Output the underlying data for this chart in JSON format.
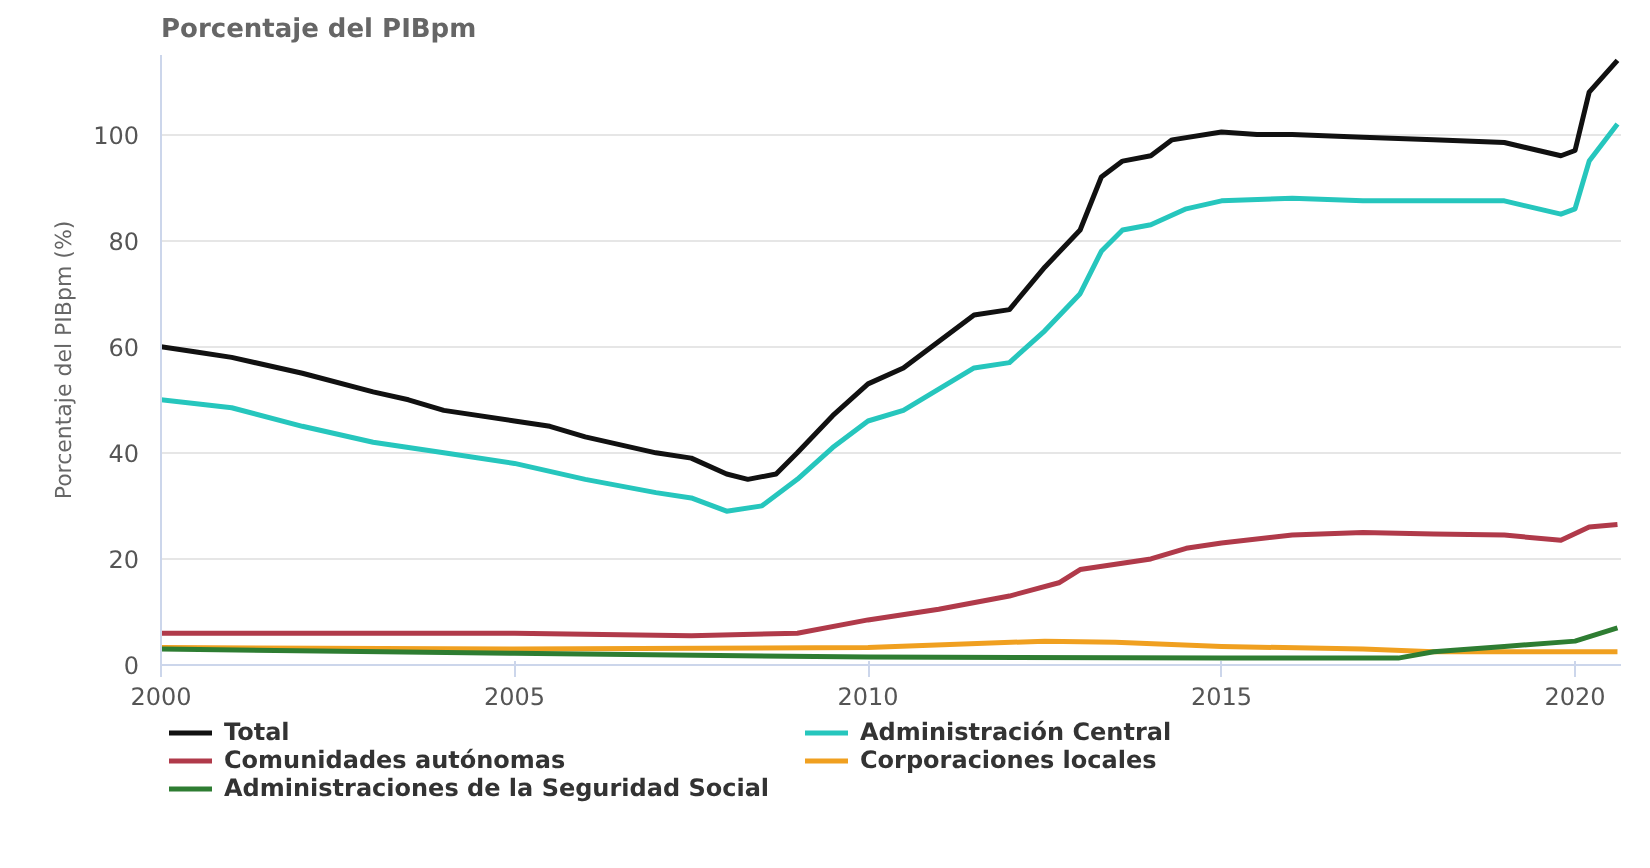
{
  "chart_data": {
    "type": "line",
    "title": "Porcentaje del PIBpm",
    "ylabel": "Porcentaje del PIBpm (%)",
    "xlim": [
      2000,
      2020.65
    ],
    "xticks": [
      2000,
      2005,
      2010,
      2015,
      2020
    ],
    "ylim": [
      0,
      115
    ],
    "yticks": [
      0,
      20,
      40,
      60,
      80,
      100
    ],
    "grid": "y",
    "legend": "bottom",
    "marker": "none",
    "line_style": "solid",
    "series": [
      {
        "name": "Total",
        "color": "#111111",
        "x": [
          2000,
          2000.5,
          2001,
          2002,
          2003,
          2003.5,
          2004,
          2005,
          2005.5,
          2006,
          2007,
          2007.5,
          2008,
          2008.3,
          2008.7,
          2009,
          2009.5,
          2010,
          2010.5,
          2011,
          2011.5,
          2012,
          2012.5,
          2013,
          2013.3,
          2013.6,
          2014,
          2014.3,
          2015,
          2015.5,
          2016,
          2017,
          2018,
          2019,
          2019.8,
          2020,
          2020.2,
          2020.6
        ],
        "values": [
          60,
          59,
          58,
          55,
          51.5,
          50,
          48,
          46,
          45,
          43,
          40,
          39,
          36,
          35,
          36,
          40,
          47,
          53,
          56,
          61,
          66,
          67,
          75,
          82,
          92,
          95,
          96,
          99,
          100.5,
          100,
          100,
          99.5,
          99,
          98.5,
          96,
          97,
          108,
          114
        ]
      },
      {
        "name": "Administración Central",
        "color": "#26c6bd",
        "x": [
          2000,
          2001,
          2002,
          2003,
          2004,
          2005,
          2006,
          2007,
          2007.5,
          2008,
          2008.5,
          2009,
          2009.5,
          2010,
          2010.5,
          2011,
          2011.5,
          2012,
          2012.5,
          2013,
          2013.3,
          2013.6,
          2014,
          2014.5,
          2015,
          2016,
          2017,
          2018,
          2019,
          2019.8,
          2020,
          2020.2,
          2020.6
        ],
        "values": [
          50,
          48.5,
          45,
          42,
          40,
          38,
          35,
          32.5,
          31.5,
          29,
          30,
          35,
          41,
          46,
          48,
          52,
          56,
          57,
          63,
          70,
          78,
          82,
          83,
          86,
          87.5,
          88,
          87.5,
          87.5,
          87.5,
          85,
          86,
          95,
          102
        ]
      },
      {
        "name": "Comunidades autónomas",
        "color": "#b03a4a",
        "x": [
          2000,
          2005,
          2007.5,
          2009,
          2010,
          2011,
          2012,
          2012.7,
          2013,
          2014,
          2014.5,
          2015,
          2016,
          2017,
          2018,
          2019,
          2019.8,
          2020.2,
          2020.6
        ],
        "values": [
          6,
          6,
          5.5,
          6,
          8.5,
          10.5,
          13,
          15.5,
          18,
          20,
          22,
          23,
          24.5,
          25,
          24.7,
          24.5,
          23.5,
          26,
          26.5
        ]
      },
      {
        "name": "Corporaciones locales",
        "color": "#f0a020",
        "x": [
          2000,
          2005,
          2010,
          2012.5,
          2013.5,
          2015,
          2017,
          2018,
          2020.6
        ],
        "values": [
          3.3,
          3,
          3.3,
          4.5,
          4.3,
          3.5,
          3,
          2.5,
          2.5
        ]
      },
      {
        "name": "Administraciones de la Seguridad Social",
        "color": "#2e7d32",
        "x": [
          2000,
          2005,
          2010,
          2015,
          2017.5,
          2018,
          2019,
          2020,
          2020.6
        ],
        "values": [
          3,
          2.2,
          1.5,
          1.3,
          1.3,
          2.5,
          3.5,
          4.5,
          7
        ]
      }
    ]
  }
}
